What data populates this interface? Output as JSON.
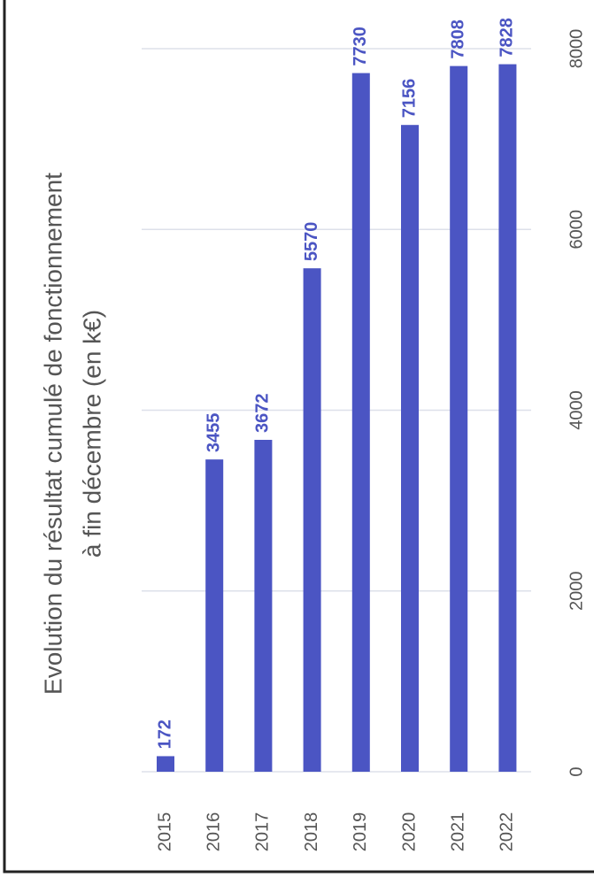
{
  "chart_data": {
    "type": "bar",
    "title": "Evolution du résultat cumulé de fonctionnement",
    "subtitle": "à fin décembre (en k€)",
    "categories": [
      "2015",
      "2016",
      "2017",
      "2018",
      "2019",
      "2020",
      "2021",
      "2022"
    ],
    "values": [
      172,
      3455,
      3672,
      5570,
      7730,
      7156,
      7808,
      7828
    ],
    "color": "#4b55c3",
    "ylim": [
      0,
      8000
    ],
    "yticks": [
      0,
      2000,
      4000,
      6000,
      8000
    ],
    "grid": true
  }
}
